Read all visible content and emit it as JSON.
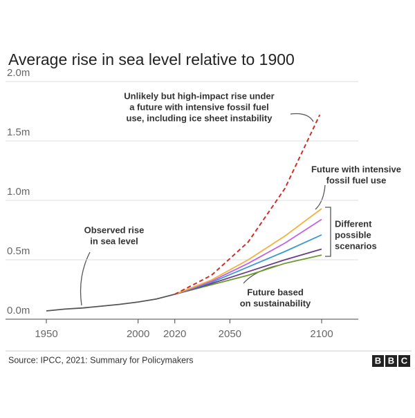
{
  "chart_data": {
    "type": "line",
    "title": "Average rise in sea level relative to 1900",
    "xlim": [
      1950,
      2120
    ],
    "xticks": [
      1950,
      2000,
      2020,
      2050,
      2100
    ],
    "ylim": [
      0,
      2
    ],
    "yticks": [
      {
        "value": 0,
        "label": "0.0m"
      },
      {
        "value": 0.5,
        "label": "0.5m"
      },
      {
        "value": 1,
        "label": "1.0m"
      },
      {
        "value": 1.5,
        "label": "1.5m"
      },
      {
        "value": 2,
        "label": "2.0m"
      }
    ],
    "grid": true,
    "series": [
      {
        "color": "#555555",
        "dash": false,
        "x": [
          1950,
          1960,
          1970,
          1980,
          1990,
          2000,
          2010,
          2020
        ],
        "values": [
          0.07,
          0.085,
          0.095,
          0.11,
          0.125,
          0.145,
          0.17,
          0.21
        ]
      },
      {
        "color": "#6a9a2a",
        "dash": false,
        "x": [
          2020,
          2040,
          2060,
          2080,
          2100
        ],
        "values": [
          0.21,
          0.29,
          0.37,
          0.47,
          0.54
        ]
      },
      {
        "color": "#6b3a8c",
        "dash": false,
        "x": [
          2020,
          2040,
          2060,
          2080,
          2100
        ],
        "values": [
          0.21,
          0.3,
          0.4,
          0.5,
          0.59
        ]
      },
      {
        "color": "#3a9ad0",
        "dash": false,
        "x": [
          2020,
          2040,
          2060,
          2080,
          2100
        ],
        "values": [
          0.21,
          0.31,
          0.44,
          0.57,
          0.71
        ]
      },
      {
        "color": "#c060e8",
        "dash": false,
        "x": [
          2020,
          2040,
          2060,
          2080,
          2100
        ],
        "values": [
          0.21,
          0.32,
          0.47,
          0.64,
          0.84
        ]
      },
      {
        "color": "#f5b040",
        "dash": false,
        "x": [
          2020,
          2040,
          2060,
          2080,
          2100
        ],
        "values": [
          0.21,
          0.33,
          0.5,
          0.7,
          0.93
        ]
      },
      {
        "color": "#c8302a",
        "dash": true,
        "x": [
          2020,
          2040,
          2060,
          2080,
          2099
        ],
        "values": [
          0.21,
          0.37,
          0.65,
          1.1,
          1.72
        ]
      }
    ],
    "annotations": [
      {
        "lines": [
          "Unlikely but high-impact rise under",
          "a future with intensive fossil fuel",
          "use, including ice sheet instability"
        ]
      },
      {
        "lines": [
          "Future with intensive",
          "fossil fuel use"
        ]
      },
      {
        "lines": [
          "Different",
          "possible",
          "scenarios"
        ]
      },
      {
        "lines": [
          "Observed rise",
          "in sea level"
        ]
      },
      {
        "lines": [
          "Future based",
          "on sustainability"
        ]
      }
    ],
    "source": "Source: IPCC, 2021: Summary for Policymakers",
    "logo": [
      "B",
      "B",
      "C"
    ]
  }
}
